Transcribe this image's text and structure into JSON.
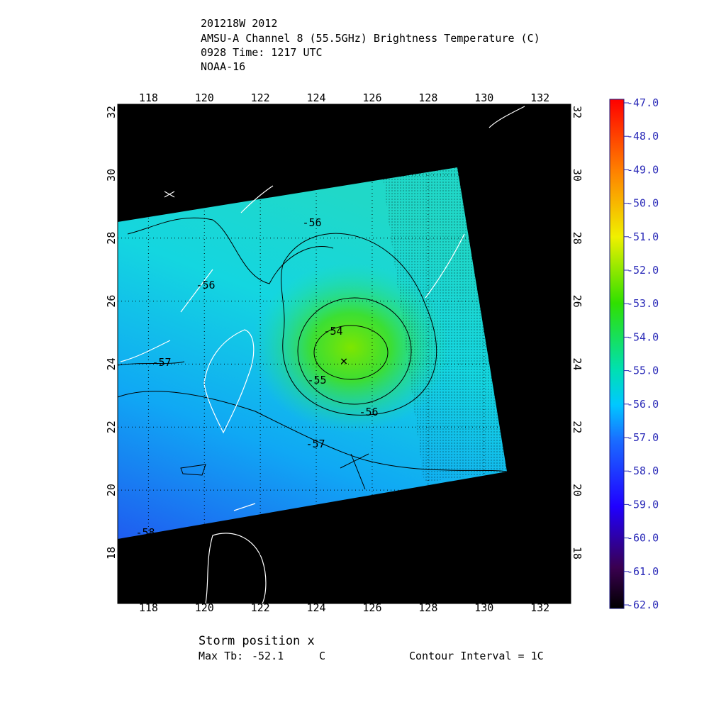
{
  "header": {
    "lines": [
      "201218W 2012",
      "AMSU-A Channel 8 (55.5GHz) Brightness Temperature (C)",
      "0928 Time: 1217 UTC",
      "NOAA-16"
    ]
  },
  "map": {
    "xlim": [
      116.9,
      133.1
    ],
    "ylim": [
      16.4,
      32.25
    ],
    "xticks": [
      118,
      120,
      122,
      124,
      126,
      128,
      130,
      132
    ],
    "yticks": [
      18,
      20,
      22,
      24,
      26,
      28,
      30,
      32
    ],
    "grid": true,
    "contour_labels": [
      -56,
      -56,
      -57,
      -54,
      -55,
      -56,
      -57,
      -58
    ]
  },
  "colorbar": {
    "range": [
      -62,
      -47
    ],
    "ticks": [
      {
        "value": -47,
        "label": "-47.0"
      },
      {
        "value": -48,
        "label": "-48.0"
      },
      {
        "value": -49,
        "label": "-49.0"
      },
      {
        "value": -50,
        "label": "-50.0"
      },
      {
        "value": -51,
        "label": "-51.0"
      },
      {
        "value": -52,
        "label": "-52.0"
      },
      {
        "value": -53,
        "label": "-53.0"
      },
      {
        "value": -54,
        "label": "-54.0"
      },
      {
        "value": -55,
        "label": "-55.0"
      },
      {
        "value": -56,
        "label": "-56.0"
      },
      {
        "value": -57,
        "label": "-57.0"
      },
      {
        "value": -58,
        "label": "-58.0"
      },
      {
        "value": -59,
        "label": "-59.0"
      },
      {
        "value": -60,
        "label": "-60.0"
      },
      {
        "value": -61,
        "label": "-61.0"
      },
      {
        "value": -62,
        "label": "-62.0"
      }
    ]
  },
  "footer": {
    "storm": "Storm position x",
    "max_tb_label": "Max Tb:",
    "max_tb": -52.1,
    "unit": "C",
    "contour_interval": "Contour Interval = 1C"
  }
}
